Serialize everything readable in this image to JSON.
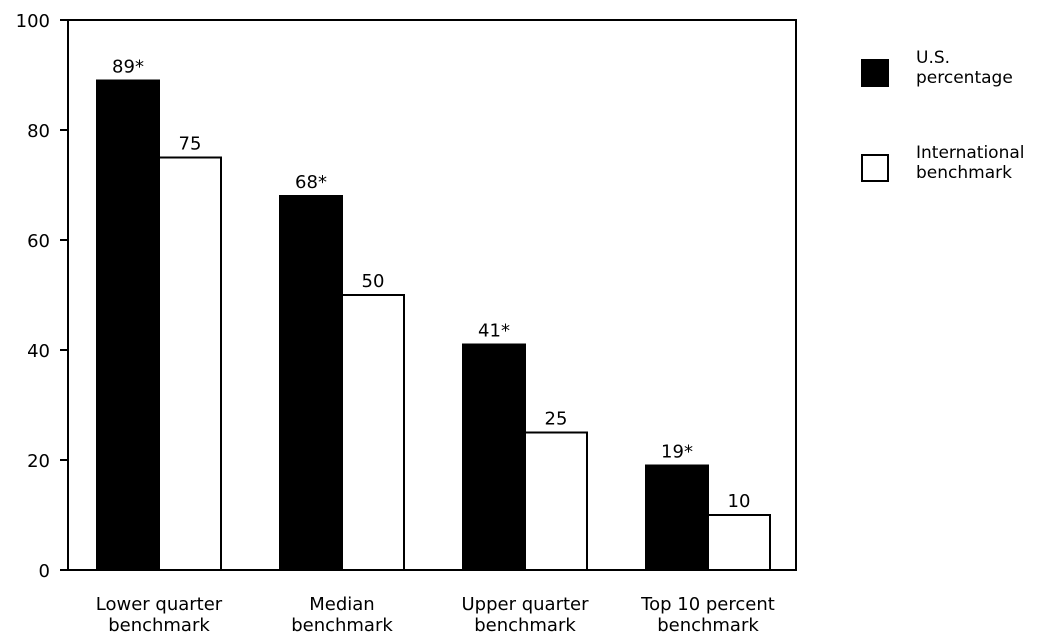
{
  "chart_data": {
    "type": "bar",
    "title": "",
    "xlabel": "",
    "ylabel": "",
    "ylim": [
      0,
      100
    ],
    "yticks": [
      0,
      20,
      40,
      60,
      80,
      100
    ],
    "grid": false,
    "legend_position": "top-right",
    "categories": [
      [
        "Lower quarter",
        "benchmark"
      ],
      [
        "Median",
        "benchmark"
      ],
      [
        "Upper quarter",
        "benchmark"
      ],
      [
        "Top 10 percent",
        "benchmark"
      ]
    ],
    "series": [
      {
        "name": [
          "U.S.",
          "percentage"
        ],
        "color": "#000000",
        "values": [
          89,
          68,
          41,
          19
        ],
        "labels": [
          "89*",
          "68*",
          "41*",
          "19*"
        ]
      },
      {
        "name": [
          "International",
          "benchmark"
        ],
        "color": "#ffffff",
        "values": [
          75,
          50,
          25,
          10
        ],
        "labels": [
          "75",
          "50",
          "25",
          "10"
        ]
      }
    ]
  }
}
